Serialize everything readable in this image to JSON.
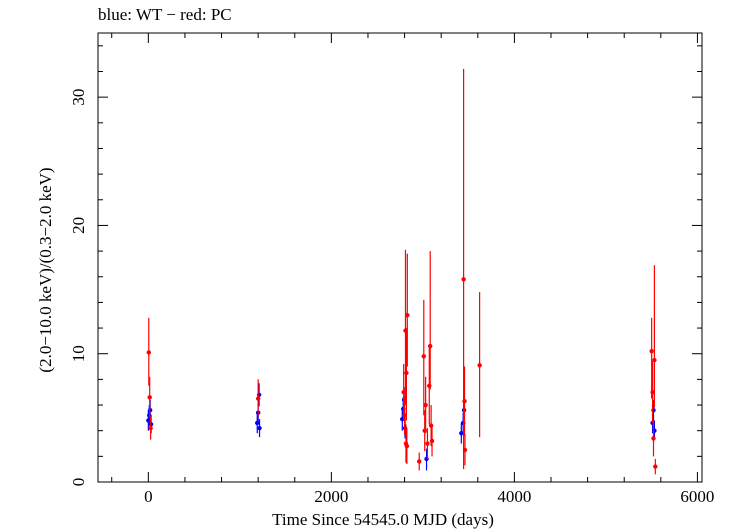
{
  "chart_data": {
    "type": "scatter",
    "title": "blue: WT − red: PC",
    "xlabel": "Time Since 54545.0 MJD (days)",
    "ylabel": "(2.0−10.0 keV)/(0.3−2.0 keV)",
    "xlim": [
      -550,
      6050
    ],
    "ylim": [
      0,
      35
    ],
    "xticks": [
      0,
      2000,
      4000,
      6000
    ],
    "yticks": [
      0,
      10,
      20,
      30
    ],
    "grid": false,
    "series": [
      {
        "name": "WT",
        "color": "#0000ff",
        "points": [
          {
            "x": 0,
            "y": 4.8,
            "lo": 4.0,
            "hi": 5.6
          },
          {
            "x": 10,
            "y": 5.2,
            "lo": 4.4,
            "hi": 6.0
          },
          {
            "x": 20,
            "y": 5.6,
            "lo": 4.8,
            "hi": 6.4
          },
          {
            "x": 30,
            "y": 4.5,
            "lo": 3.8,
            "hi": 5.2
          },
          {
            "x": 1190,
            "y": 4.6,
            "lo": 3.8,
            "hi": 5.4
          },
          {
            "x": 1200,
            "y": 5.4,
            "lo": 4.6,
            "hi": 6.2
          },
          {
            "x": 1210,
            "y": 6.8,
            "lo": 5.9,
            "hi": 7.7
          },
          {
            "x": 1215,
            "y": 4.2,
            "lo": 3.5,
            "hi": 4.9
          },
          {
            "x": 2775,
            "y": 4.9,
            "lo": 4.0,
            "hi": 5.8
          },
          {
            "x": 2785,
            "y": 5.7,
            "lo": 4.8,
            "hi": 6.6
          },
          {
            "x": 2795,
            "y": 6.4,
            "lo": 5.4,
            "hi": 7.4
          },
          {
            "x": 2805,
            "y": 4.2,
            "lo": 3.4,
            "hi": 5.0
          },
          {
            "x": 3040,
            "y": 1.8,
            "lo": 0.9,
            "hi": 2.6
          },
          {
            "x": 3420,
            "y": 3.8,
            "lo": 3.0,
            "hi": 4.6
          },
          {
            "x": 3440,
            "y": 4.6,
            "lo": 3.8,
            "hi": 5.4
          },
          {
            "x": 3450,
            "y": 5.6,
            "lo": 4.8,
            "hi": 6.3
          },
          {
            "x": 5510,
            "y": 4.6,
            "lo": 3.8,
            "hi": 5.4
          },
          {
            "x": 5520,
            "y": 5.6,
            "lo": 4.8,
            "hi": 6.4
          },
          {
            "x": 5530,
            "y": 4.0,
            "lo": 3.3,
            "hi": 4.8
          }
        ]
      },
      {
        "name": "PC",
        "color": "#ff0000",
        "points": [
          {
            "x": 5,
            "y": 10.1,
            "lo": 7.5,
            "hi": 12.8
          },
          {
            "x": 15,
            "y": 6.6,
            "lo": 5.0,
            "hi": 8.2
          },
          {
            "x": 25,
            "y": 4.2,
            "lo": 3.3,
            "hi": 5.1
          },
          {
            "x": 1200,
            "y": 6.5,
            "lo": 5.1,
            "hi": 8.0
          },
          {
            "x": 2790,
            "y": 7.0,
            "lo": 4.8,
            "hi": 9.2
          },
          {
            "x": 2800,
            "y": 5.2,
            "lo": 3.7,
            "hi": 6.7
          },
          {
            "x": 2810,
            "y": 11.8,
            "lo": 6.0,
            "hi": 18.1
          },
          {
            "x": 2815,
            "y": 3.0,
            "lo": 1.5,
            "hi": 4.5
          },
          {
            "x": 2820,
            "y": 8.5,
            "lo": 4.8,
            "hi": 12.0
          },
          {
            "x": 2825,
            "y": 2.8,
            "lo": 1.4,
            "hi": 4.2
          },
          {
            "x": 2830,
            "y": 13.0,
            "lo": 9.0,
            "hi": 17.8
          },
          {
            "x": 2960,
            "y": 1.6,
            "lo": 0.9,
            "hi": 2.3
          },
          {
            "x": 3010,
            "y": 9.8,
            "lo": 5.2,
            "hi": 14.2
          },
          {
            "x": 3020,
            "y": 4.0,
            "lo": 2.4,
            "hi": 5.6
          },
          {
            "x": 3030,
            "y": 6.0,
            "lo": 3.8,
            "hi": 8.2
          },
          {
            "x": 3050,
            "y": 3.0,
            "lo": 1.8,
            "hi": 4.2
          },
          {
            "x": 3070,
            "y": 7.5,
            "lo": 4.5,
            "hi": 10.5
          },
          {
            "x": 3080,
            "y": 10.6,
            "lo": 7.2,
            "hi": 18.0
          },
          {
            "x": 3090,
            "y": 4.4,
            "lo": 2.8,
            "hi": 6.0
          },
          {
            "x": 3100,
            "y": 3.2,
            "lo": 2.0,
            "hi": 4.4
          },
          {
            "x": 3445,
            "y": 15.8,
            "lo": 1.0,
            "hi": 32.2
          },
          {
            "x": 3455,
            "y": 6.3,
            "lo": 3.6,
            "hi": 9.0
          },
          {
            "x": 3460,
            "y": 2.5,
            "lo": 1.3,
            "hi": 3.7
          },
          {
            "x": 3620,
            "y": 9.1,
            "lo": 3.5,
            "hi": 14.8
          },
          {
            "x": 5500,
            "y": 10.2,
            "lo": 6.5,
            "hi": 12.8
          },
          {
            "x": 5510,
            "y": 7.0,
            "lo": 4.6,
            "hi": 9.4
          },
          {
            "x": 5520,
            "y": 3.4,
            "lo": 2.0,
            "hi": 4.8
          },
          {
            "x": 5530,
            "y": 9.5,
            "lo": 5.8,
            "hi": 16.9
          },
          {
            "x": 5540,
            "y": 1.2,
            "lo": 0.6,
            "hi": 1.8
          }
        ]
      }
    ]
  }
}
